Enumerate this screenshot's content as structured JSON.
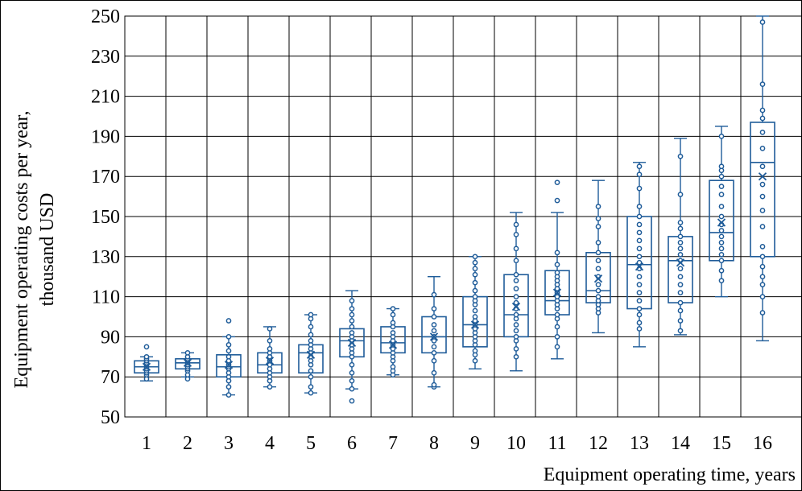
{
  "chart_data": {
    "type": "box",
    "xlabel": "Equipment operating time, years",
    "ylabel_line1": "Equipment operating costs per year,",
    "ylabel_line2": "thousand USD",
    "ylim": [
      50,
      250
    ],
    "yticks": [
      50,
      70,
      90,
      110,
      130,
      150,
      170,
      190,
      210,
      230,
      250
    ],
    "categories": [
      "1",
      "2",
      "3",
      "4",
      "5",
      "6",
      "7",
      "8",
      "9",
      "10",
      "11",
      "12",
      "13",
      "14",
      "15",
      "16"
    ],
    "grid": true,
    "color": "#1f5c99",
    "boxes": [
      {
        "year": "1",
        "whisker_low": 68,
        "q1": 72,
        "median": 75,
        "q3": 78,
        "whisker_high": 80,
        "mean": 75,
        "points": [
          69,
          71,
          72,
          73,
          74,
          75,
          76,
          77,
          78,
          79,
          80,
          85
        ]
      },
      {
        "year": "2",
        "whisker_low": 70,
        "q1": 74,
        "median": 77,
        "q3": 79,
        "whisker_high": 82,
        "mean": 77,
        "points": [
          69,
          71,
          73,
          74,
          75,
          76,
          77,
          78,
          79,
          80,
          82
        ]
      },
      {
        "year": "3",
        "whisker_low": 61,
        "q1": 70,
        "median": 75,
        "q3": 81,
        "whisker_high": 90,
        "mean": 76,
        "points": [
          61,
          65,
          68,
          70,
          72,
          74,
          75,
          76,
          78,
          80,
          83,
          86,
          90,
          98
        ]
      },
      {
        "year": "4",
        "whisker_low": 65,
        "q1": 72,
        "median": 76,
        "q3": 82,
        "whisker_high": 95,
        "mean": 78,
        "points": [
          65,
          68,
          70,
          72,
          74,
          76,
          78,
          80,
          82,
          84,
          88,
          94
        ]
      },
      {
        "year": "5",
        "whisker_low": 62,
        "q1": 72,
        "median": 82,
        "q3": 86,
        "whisker_high": 101,
        "mean": 81,
        "points": [
          62,
          65,
          70,
          73,
          76,
          78,
          80,
          82,
          84,
          86,
          88,
          91,
          95,
          99,
          101
        ]
      },
      {
        "year": "6",
        "whisker_low": 64,
        "q1": 80,
        "median": 88,
        "q3": 94,
        "whisker_high": 113,
        "mean": 87,
        "points": [
          58,
          64,
          68,
          72,
          76,
          80,
          82,
          84,
          86,
          88,
          90,
          92,
          95,
          98,
          101,
          104,
          108
        ]
      },
      {
        "year": "7",
        "whisker_low": 71,
        "q1": 82,
        "median": 87,
        "q3": 95,
        "whisker_high": 104,
        "mean": 86,
        "points": [
          71,
          73,
          75,
          78,
          80,
          82,
          84,
          86,
          88,
          90,
          92,
          95,
          97,
          101,
          104
        ]
      },
      {
        "year": "8",
        "whisker_low": 65,
        "q1": 82,
        "median": 90,
        "q3": 100,
        "whisker_high": 120,
        "mean": 90,
        "points": [
          65,
          66,
          72,
          78,
          82,
          85,
          88,
          90,
          93,
          96,
          100,
          104,
          111
        ]
      },
      {
        "year": "9",
        "whisker_low": 74,
        "q1": 85,
        "median": 96,
        "q3": 110,
        "whisker_high": 130,
        "mean": 96,
        "points": [
          78,
          81,
          83,
          86,
          88,
          90,
          92,
          94,
          96,
          98,
          100,
          103,
          106,
          108,
          110,
          113,
          117,
          121,
          124,
          127,
          130
        ]
      },
      {
        "year": "10",
        "whisker_low": 73,
        "q1": 90,
        "median": 101,
        "q3": 121,
        "whisker_high": 152,
        "mean": 105,
        "points": [
          80,
          84,
          88,
          90,
          93,
          96,
          99,
          101,
          104,
          107,
          110,
          114,
          118,
          121,
          128,
          134,
          141,
          146
        ]
      },
      {
        "year": "11",
        "whisker_low": 79,
        "q1": 101,
        "median": 108,
        "q3": 123,
        "whisker_high": 152,
        "mean": 112,
        "points": [
          85,
          90,
          95,
          99,
          101,
          104,
          106,
          108,
          110,
          112,
          114,
          116,
          118,
          120,
          122,
          126,
          132,
          158,
          167
        ]
      },
      {
        "year": "12",
        "whisker_low": 92,
        "q1": 107,
        "median": 113,
        "q3": 132,
        "whisker_high": 168,
        "mean": 119,
        "points": [
          102,
          104,
          106,
          108,
          110,
          113,
          116,
          120,
          124,
          128,
          132,
          137,
          145,
          149,
          155
        ]
      },
      {
        "year": "13",
        "whisker_low": 85,
        "q1": 104,
        "median": 126,
        "q3": 150,
        "whisker_high": 177,
        "mean": 125,
        "points": [
          94,
          97,
          101,
          104,
          108,
          112,
          116,
          120,
          124,
          127,
          130,
          134,
          138,
          142,
          146,
          150,
          155,
          164,
          171,
          175
        ]
      },
      {
        "year": "14",
        "whisker_low": 91,
        "q1": 107,
        "median": 128,
        "q3": 140,
        "whisker_high": 189,
        "mean": 127,
        "points": [
          93,
          98,
          103,
          107,
          112,
          116,
          120,
          124,
          128,
          131,
          134,
          137,
          140,
          144,
          147,
          161,
          180
        ]
      },
      {
        "year": "15",
        "whisker_low": 110,
        "q1": 128,
        "median": 142,
        "q3": 168,
        "whisker_high": 195,
        "mean": 147,
        "points": [
          118,
          123,
          128,
          131,
          134,
          137,
          140,
          143,
          146,
          150,
          155,
          161,
          165,
          170,
          173,
          175,
          190
        ]
      },
      {
        "year": "16",
        "whisker_low": 88,
        "q1": 130,
        "median": 177,
        "q3": 197,
        "whisker_high": 250,
        "mean": 170,
        "points": [
          102,
          110,
          116,
          120,
          125,
          130,
          135,
          145,
          153,
          160,
          166,
          175,
          184,
          192,
          199,
          203,
          216,
          247
        ]
      }
    ]
  }
}
